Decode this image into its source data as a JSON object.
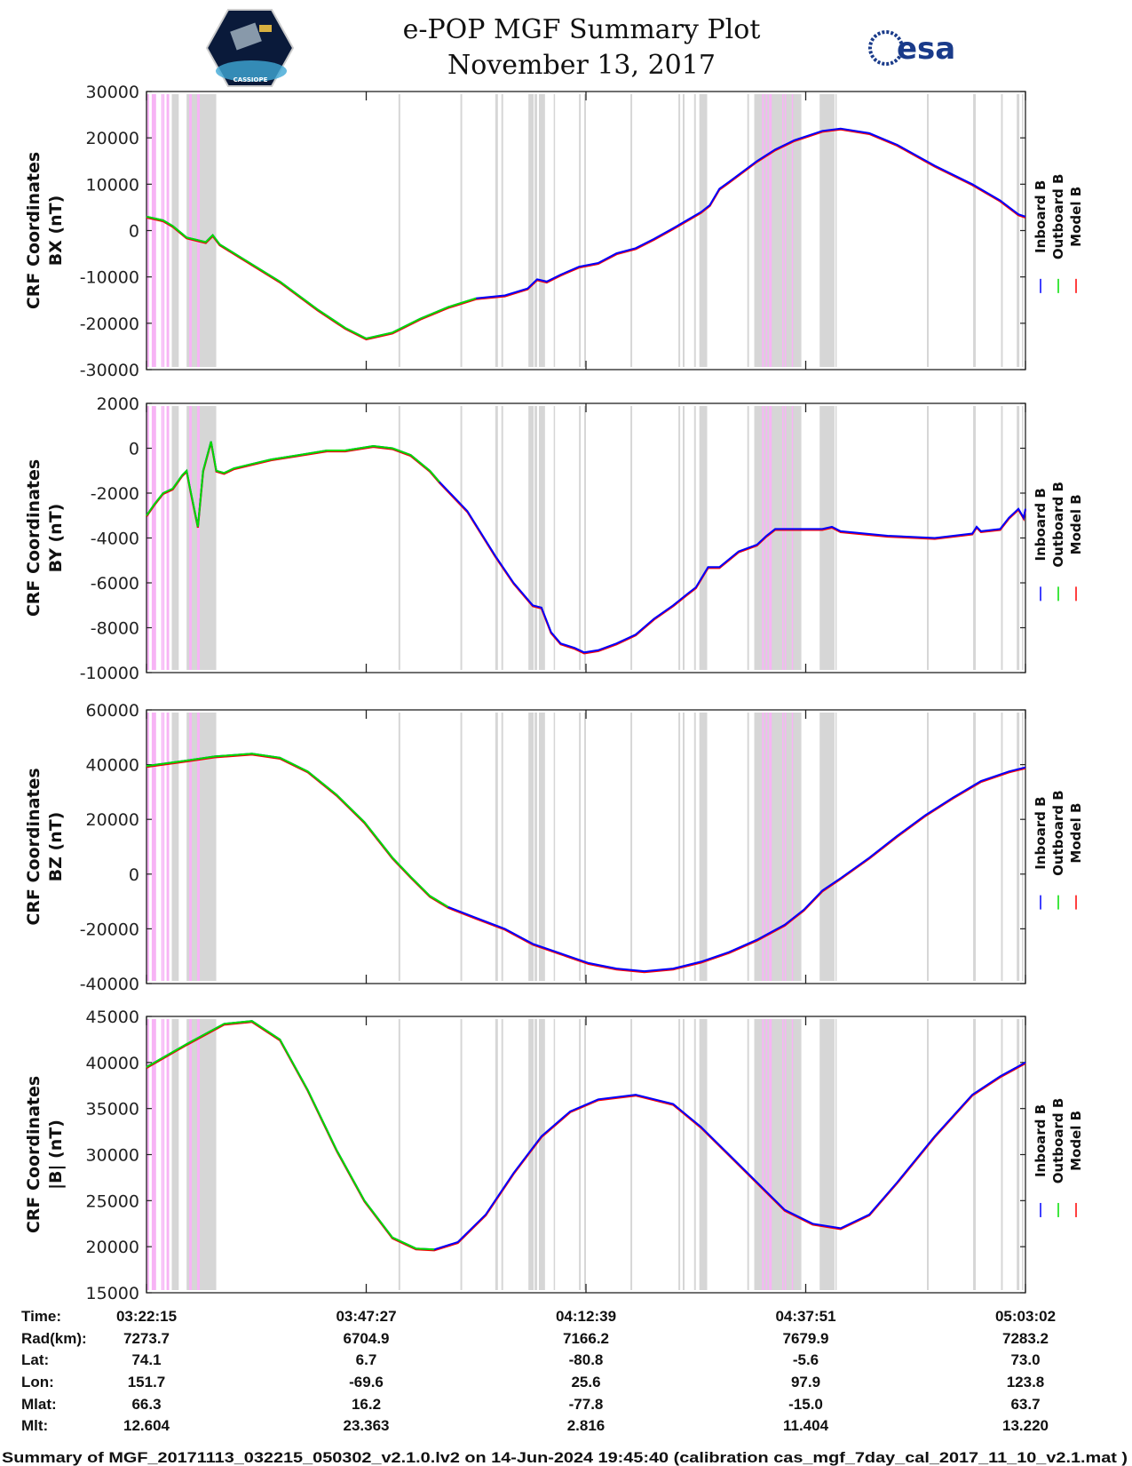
{
  "header": {
    "title": "e-POP MGF Summary Plot",
    "date": "November 13, 2017",
    "left_logo_text": "CASSIOPE",
    "right_logo_text": "esa"
  },
  "colors": {
    "inboard": "#0000ff",
    "outboard": "#00dd00",
    "model": "#ff0000",
    "gray_band": "#d6d6d6",
    "pink_band": "#f7b4f5"
  },
  "legend": [
    "Inboard B",
    "Outboard B",
    "Model B"
  ],
  "chart_data": [
    {
      "type": "line",
      "ylabel": [
        "CRF Coordinates",
        "BX (nT)"
      ],
      "ylim": [
        -30000,
        30000
      ],
      "yticks": [
        "30000",
        "20000",
        "10000",
        "0",
        "-10000",
        "-20000",
        "-30000"
      ],
      "ytick_values": [
        30000,
        20000,
        10000,
        0,
        -10000,
        -20000,
        -30000
      ],
      "green_end": 38.4,
      "x": [
        0,
        1.9,
        3.0,
        4.6,
        5.7,
        6.8,
        7.6,
        8.4,
        11.0,
        15.3,
        19.6,
        22.8,
        25.2,
        28.2,
        31.4,
        34.6,
        37.8,
        41.1,
        43.7,
        44.8,
        45.9,
        47.5,
        49.6,
        51.8,
        53.9,
        56.1,
        58.2,
        60.4,
        62.5,
        63.6,
        64.6,
        65.7,
        66.8,
        70.0,
        72.1,
        74.3,
        77.5,
        79.6,
        82.9,
        86.1,
        90.4,
        94.7,
        97.9,
        100.0,
        100.8
      ],
      "y": [
        3000,
        2200,
        1000,
        -1500,
        -2000,
        -2500,
        -1000,
        -3000,
        -6000,
        -11000,
        -17000,
        -21000,
        -23300,
        -22000,
        -19000,
        -16500,
        -14600,
        -14000,
        -12500,
        -10500,
        -11000,
        -9500,
        -7800,
        -7000,
        -4900,
        -3800,
        -1800,
        500,
        2800,
        4000,
        5500,
        9000,
        10500,
        15000,
        17500,
        19500,
        21500,
        22000,
        21000,
        18500,
        14000,
        10000,
        6500,
        3500,
        3000
      ]
    },
    {
      "type": "line",
      "ylabel": [
        "CRF Coordinates",
        "BY (nT)"
      ],
      "ylim": [
        -10000,
        2000
      ],
      "yticks": [
        "2000",
        "0",
        "-2000",
        "-4000",
        "-6000",
        "-8000",
        "-10000"
      ],
      "ytick_values": [
        2000,
        0,
        -2000,
        -4000,
        -6000,
        -8000,
        -10000
      ],
      "green_end": 33.6,
      "x": [
        0,
        0.9,
        1.9,
        3.0,
        4.1,
        4.6,
        5.1,
        5.9,
        6.5,
        7.4,
        8.0,
        8.9,
        10.0,
        12.1,
        14.3,
        17.5,
        20.7,
        22.8,
        26.0,
        28.2,
        30.3,
        32.5,
        33.6,
        36.8,
        40.0,
        42.1,
        44.3,
        45.3,
        46.4,
        47.5,
        49.1,
        50.2,
        51.8,
        53.9,
        56.1,
        58.2,
        60.4,
        62.0,
        63.0,
        64.4,
        65.7,
        67.9,
        70.0,
        71.1,
        72.1,
        74.3,
        77.5,
        78.6,
        79.6,
        85.0,
        90.4,
        94.7,
        95.2,
        95.7,
        97.9,
        98.9,
        100.0,
        100.6,
        100.8
      ],
      "y": [
        -3000,
        -2500,
        -2000,
        -1800,
        -1200,
        -1000,
        -2000,
        -3500,
        -1000,
        300,
        -1000,
        -1100,
        -900,
        -700,
        -500,
        -300,
        -100,
        -100,
        100,
        0,
        -300,
        -1000,
        -1500,
        -2800,
        -4800,
        -6000,
        -7000,
        -7100,
        -8200,
        -8700,
        -8900,
        -9100,
        -9000,
        -8700,
        -8300,
        -7600,
        -7000,
        -6500,
        -6200,
        -5300,
        -5300,
        -4600,
        -4300,
        -3900,
        -3600,
        -3600,
        -3600,
        -3500,
        -3700,
        -3900,
        -4000,
        -3800,
        -3500,
        -3700,
        -3600,
        -3100,
        -2700,
        -3100,
        -2700
      ]
    },
    {
      "type": "line",
      "ylabel": [
        "CRF Coordinates",
        "BZ (nT)"
      ],
      "ylim": [
        -40000,
        60000
      ],
      "yticks": [
        "60000",
        "40000",
        "20000",
        "0",
        "-20000",
        "-40000"
      ],
      "ytick_values": [
        60000,
        40000,
        20000,
        0,
        -20000,
        -40000
      ],
      "green_end": 35.7,
      "x": [
        0,
        4.6,
        7.8,
        12.1,
        15.3,
        18.5,
        21.8,
        25.0,
        28.2,
        30.3,
        32.5,
        34.6,
        37.8,
        41.1,
        44.3,
        47.5,
        50.7,
        53.9,
        57.1,
        60.4,
        63.6,
        66.8,
        70.0,
        73.2,
        75.4,
        77.5,
        79.6,
        82.9,
        86.1,
        89.3,
        92.5,
        95.7,
        98.9,
        100.8
      ],
      "y": [
        39500,
        41500,
        43000,
        44000,
        42500,
        37500,
        29000,
        19000,
        6000,
        -1000,
        -8000,
        -12000,
        -16000,
        -20000,
        -25500,
        -29000,
        -32500,
        -34500,
        -35500,
        -34500,
        -32000,
        -28500,
        -24000,
        -18500,
        -13000,
        -6000,
        -1500,
        6000,
        14000,
        21500,
        28000,
        34000,
        37500,
        39000
      ]
    },
    {
      "type": "line",
      "ylabel": [
        "CRF Coordinates",
        "|B| (nT)"
      ],
      "ylim": [
        15000,
        45000
      ],
      "yticks": [
        "45000",
        "40000",
        "35000",
        "30000",
        "25000",
        "20000",
        "15000"
      ],
      "ytick_values": [
        45000,
        40000,
        35000,
        30000,
        25000,
        20000,
        15000
      ],
      "green_end": 33.0,
      "x": [
        0,
        4.6,
        8.9,
        12.1,
        15.3,
        18.5,
        21.8,
        25.0,
        28.2,
        30.9,
        33.0,
        35.7,
        38.9,
        42.1,
        45.3,
        48.6,
        51.8,
        56.1,
        60.4,
        63.6,
        66.8,
        70.0,
        73.2,
        76.4,
        79.6,
        82.9,
        86.1,
        90.4,
        94.7,
        97.9,
        100.8
      ],
      "y": [
        39500,
        42000,
        44200,
        44500,
        42500,
        37000,
        30500,
        25000,
        21000,
        19800,
        19700,
        20500,
        23500,
        28000,
        32000,
        34700,
        36000,
        36500,
        35500,
        33000,
        30000,
        27000,
        24000,
        22500,
        22000,
        23500,
        27000,
        32000,
        36500,
        38500,
        40000
      ]
    }
  ],
  "x_axis": {
    "range_minutes": [
      0,
      100.8
    ],
    "tick_minutes": [
      0,
      25.2,
      50.4,
      75.6,
      100.8
    ]
  },
  "bands": {
    "gray": [
      [
        2.9,
        3.7
      ],
      [
        4.6,
        8.0
      ],
      [
        28.9,
        29.1
      ],
      [
        36.0,
        36.2
      ],
      [
        40.0,
        40.3
      ],
      [
        40.7,
        40.9
      ],
      [
        43.8,
        44.4
      ],
      [
        44.5,
        44.8
      ],
      [
        45.0,
        45.7
      ],
      [
        46.7,
        46.8
      ],
      [
        49.6,
        49.8
      ],
      [
        50.2,
        50.4
      ],
      [
        55.5,
        55.7
      ],
      [
        61.0,
        61.2
      ],
      [
        61.5,
        61.7
      ],
      [
        62.8,
        63.0
      ],
      [
        63.4,
        64.3
      ],
      [
        68.9,
        69.1
      ],
      [
        69.7,
        75.1
      ],
      [
        77.2,
        78.9
      ],
      [
        79.0,
        79.1
      ],
      [
        89.5,
        89.7
      ],
      [
        94.8,
        95.1
      ],
      [
        98.0,
        98.2
      ],
      [
        99.8,
        100.1
      ],
      [
        100.4,
        100.5
      ]
    ],
    "pink": [
      [
        0,
        0.3
      ],
      [
        0.6,
        1.1
      ],
      [
        1.7,
        1.8
      ],
      [
        1.9,
        2.0
      ],
      [
        2.3,
        2.6
      ],
      [
        4.9,
        5.2
      ],
      [
        5.8,
        6.1
      ],
      [
        70.6,
        70.8
      ],
      [
        71.0,
        71.2
      ],
      [
        71.4,
        71.7
      ],
      [
        72.9,
        73.0
      ],
      [
        73.2,
        73.3
      ],
      [
        74.0,
        74.1
      ]
    ]
  },
  "info_table": {
    "labels": [
      "Time:",
      "Rad(km):",
      "Lat:",
      "Lon:",
      "Mlat:",
      "Mlt:"
    ],
    "columns": [
      [
        "03:22:15",
        "7273.7",
        "74.1",
        "151.7",
        "66.3",
        "12.604"
      ],
      [
        "03:47:27",
        "6704.9",
        "6.7",
        "-69.6",
        "16.2",
        "23.363"
      ],
      [
        "04:12:39",
        "7166.2",
        "-80.8",
        "25.6",
        "-77.8",
        "2.816"
      ],
      [
        "04:37:51",
        "7679.9",
        "-5.6",
        "97.9",
        "-15.0",
        "11.404"
      ],
      [
        "05:03:02",
        "7283.2",
        "73.0",
        "123.8",
        "63.7",
        "13.220"
      ]
    ]
  },
  "caption": "Summary of MGF_20171113_032215_050302_v2.1.0.lv2 on 14-Jun-2024 19:45:40 (calibration cas_mgf_7day_cal_2017_11_10_v2.1.mat )"
}
